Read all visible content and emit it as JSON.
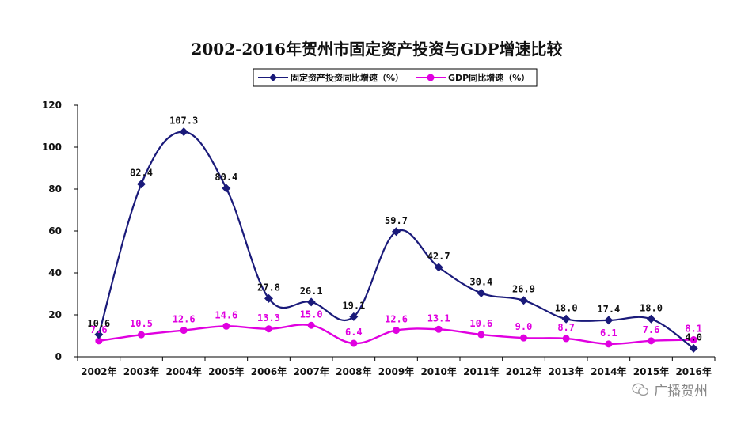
{
  "chart_data": {
    "type": "line",
    "title": "2002-2016年贺州市固定资产投资与GDP增速比较",
    "categories": [
      "2002年",
      "2003年",
      "2004年",
      "2005年",
      "2006年",
      "2007年",
      "2008年",
      "2009年",
      "2010年",
      "2011年",
      "2012年",
      "2013年",
      "2014年",
      "2015年",
      "2016年"
    ],
    "ylim": [
      0,
      120
    ],
    "yticks": [
      0,
      20,
      40,
      60,
      80,
      100,
      120
    ],
    "grid": false,
    "legend_position": "top",
    "series": [
      {
        "name": "固定资产投资同比增速（%）",
        "color": "#1a1a7a",
        "marker": "diamond",
        "values": [
          10.6,
          82.4,
          107.3,
          80.4,
          27.8,
          26.1,
          19.1,
          59.7,
          42.7,
          30.4,
          26.9,
          18.0,
          17.4,
          18.0,
          4.0
        ],
        "labels": [
          "10.6",
          "82.4",
          "107.3",
          "80.4",
          "27.8",
          "26.1",
          "19.1",
          "59.7",
          "42.7",
          "30.4",
          "26.9",
          "18.0",
          "17.4",
          "18.0",
          "4.0"
        ]
      },
      {
        "name": "GDP同比增速（%）",
        "color": "#e000e0",
        "marker": "circle",
        "values": [
          7.6,
          10.5,
          12.6,
          14.6,
          13.3,
          15.0,
          6.4,
          12.6,
          13.1,
          10.6,
          9.0,
          8.7,
          6.1,
          7.6,
          8.1
        ],
        "labels": [
          "7.6",
          "10.5",
          "12.6",
          "14.6",
          "13.3",
          "15.0",
          "6.4",
          "12.6",
          "13.1",
          "10.6",
          "9.0",
          "8.7",
          "6.1",
          "7.6",
          "8.1"
        ]
      }
    ]
  },
  "watermark": {
    "text": "广播贺州",
    "icon": "wechat-icon"
  }
}
